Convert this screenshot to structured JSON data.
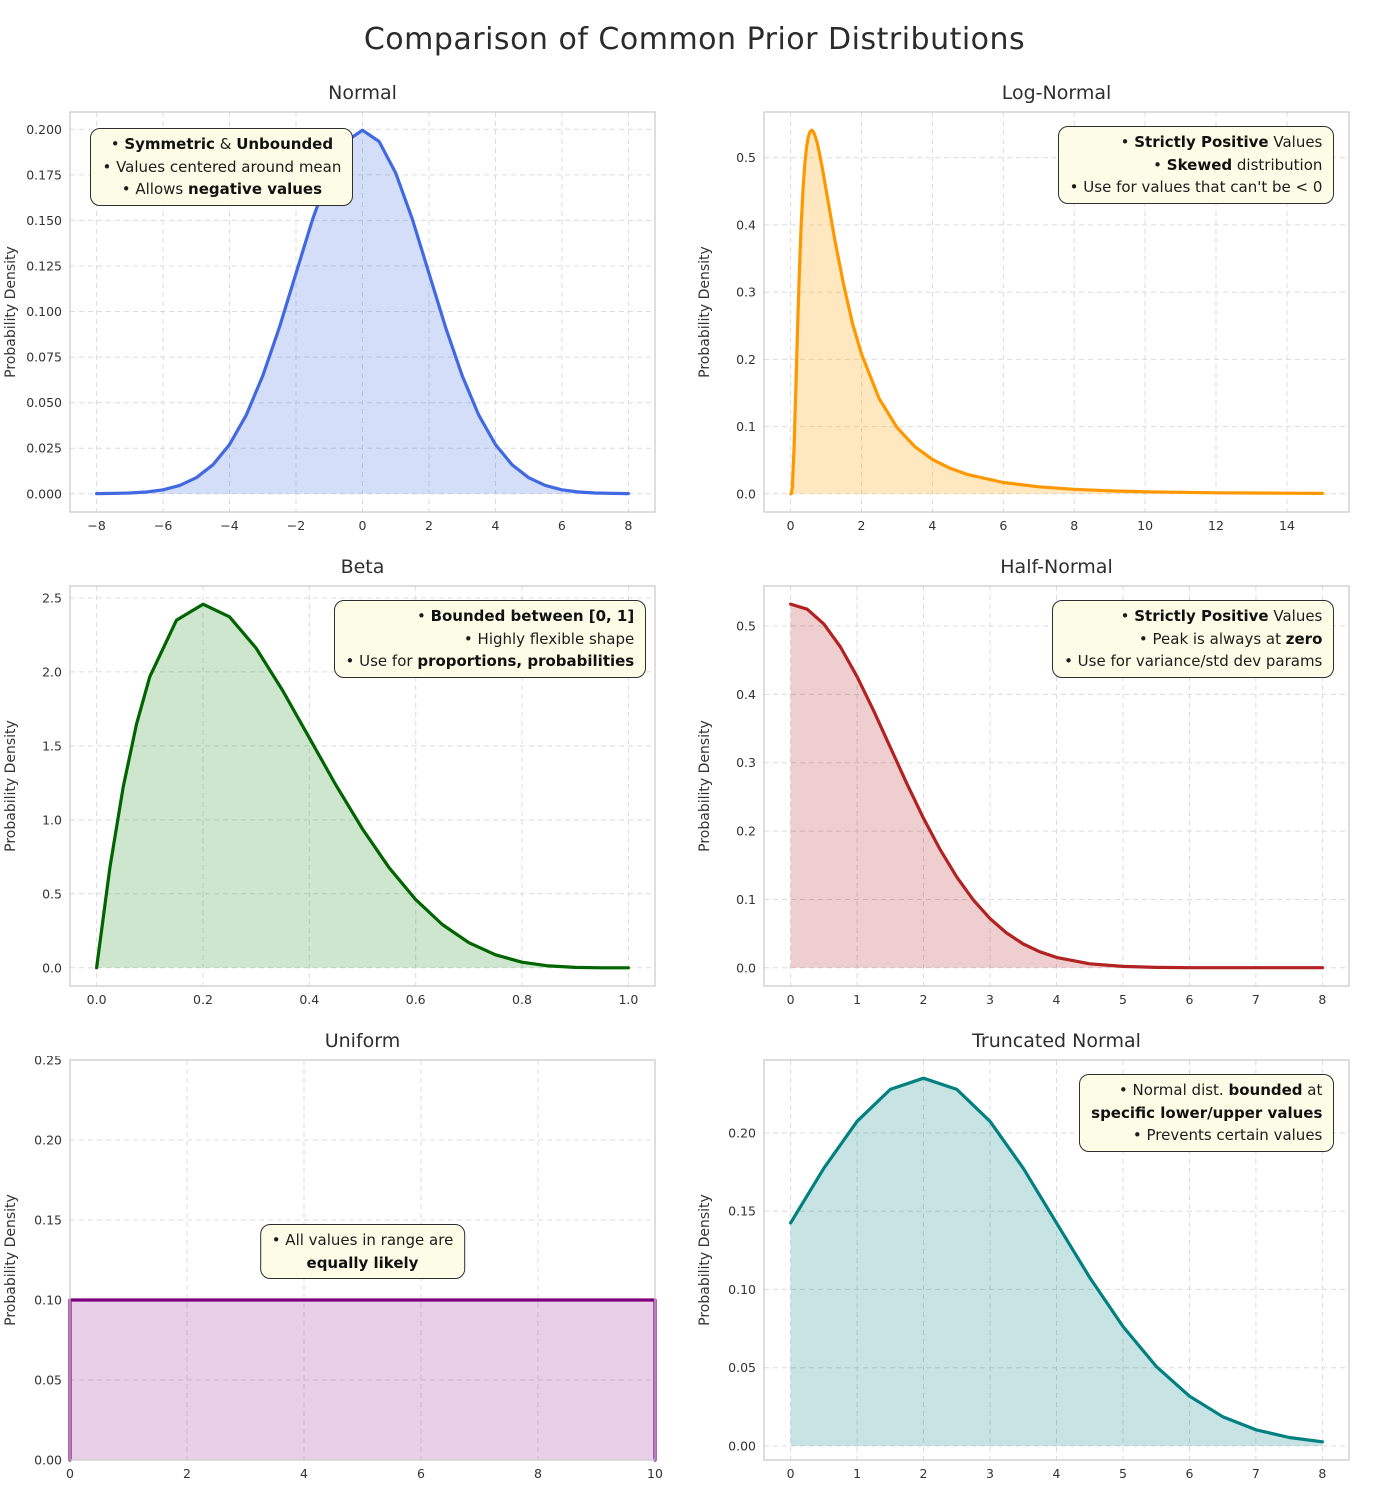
{
  "figure": {
    "title": "Comparison of Common Prior Distributions",
    "background": "#ffffff",
    "annotation_bg": "#fdfce6",
    "annotation_border": "#2f2f2f",
    "grid_color": "#dcdcdc",
    "spine_color": "#cccccc"
  },
  "chart_data": [
    {
      "type": "area",
      "title": "Normal",
      "ylabel": "Probability Density",
      "color": "#4169E1",
      "fill": "rgba(65,105,225,0.22)",
      "xlim": [
        -8.8,
        8.8
      ],
      "ylim": [
        -0.01,
        0.2095
      ],
      "xticks": [
        -8,
        -6,
        -4,
        -2,
        0,
        2,
        4,
        6,
        8
      ],
      "xtick_labels": [
        "−8",
        "−6",
        "−4",
        "−2",
        "0",
        "2",
        "4",
        "6",
        "8"
      ],
      "yticks": [
        0,
        0.025,
        0.05,
        0.075,
        0.1,
        0.125,
        0.15,
        0.175,
        0.2
      ],
      "ytick_labels": [
        "0.000",
        "0.025",
        "0.050",
        "0.075",
        "0.100",
        "0.125",
        "0.150",
        "0.175",
        "0.200"
      ],
      "x": [
        -8,
        -7.5,
        -7,
        -6.5,
        -6,
        -5.5,
        -5,
        -4.5,
        -4,
        -3.5,
        -3,
        -2.5,
        -2,
        -1.5,
        -1,
        -0.5,
        0,
        0.5,
        1,
        1.5,
        2,
        2.5,
        3,
        3.5,
        4,
        4.5,
        5,
        5.5,
        6,
        6.5,
        7,
        7.5,
        8
      ],
      "y": [
        0.0001,
        0.0002,
        0.0004,
        0.001,
        0.0022,
        0.0046,
        0.0088,
        0.0159,
        0.027,
        0.0431,
        0.0648,
        0.0913,
        0.121,
        0.1506,
        0.176,
        0.1933,
        0.1995,
        0.1933,
        0.176,
        0.1506,
        0.121,
        0.0913,
        0.0648,
        0.0431,
        0.027,
        0.0159,
        0.0088,
        0.0046,
        0.0022,
        0.001,
        0.0004,
        0.0002,
        0.0001
      ],
      "grid": true,
      "annotation": {
        "align": "center",
        "anchor": "left",
        "fx": 0.035,
        "fy": 0.04,
        "lines": [
          [
            {
              "t": "• "
            },
            {
              "t": "Symmetric",
              "b": 1
            },
            {
              "t": " & "
            },
            {
              "t": "Unbounded",
              "b": 1
            }
          ],
          [
            {
              "t": "• Values centered around mean"
            }
          ],
          [
            {
              "t": "• Allows "
            },
            {
              "t": "negative values",
              "b": 1
            }
          ]
        ]
      }
    },
    {
      "type": "area",
      "title": "Log-Normal",
      "ylabel": "Probability Density",
      "color": "#FF9800",
      "fill": "rgba(255,165,0,0.25)",
      "xlim": [
        -0.75,
        15.75
      ],
      "ylim": [
        -0.027,
        0.568
      ],
      "xticks": [
        0,
        2,
        4,
        6,
        8,
        10,
        12,
        14
      ],
      "xtick_labels": [
        "0",
        "2",
        "4",
        "6",
        "8",
        "10",
        "12",
        "14"
      ],
      "yticks": [
        0,
        0.1,
        0.2,
        0.3,
        0.4,
        0.5
      ],
      "ytick_labels": [
        "0.0",
        "0.1",
        "0.2",
        "0.3",
        "0.4",
        "0.5"
      ],
      "x": [
        0.01,
        0.02,
        0.05,
        0.1,
        0.15,
        0.2,
        0.25,
        0.3,
        0.35,
        0.4,
        0.45,
        0.5,
        0.55,
        0.6,
        0.65,
        0.7,
        0.75,
        0.8,
        0.9,
        1,
        1.25,
        1.5,
        1.75,
        2,
        2.5,
        3,
        3.5,
        4,
        4.5,
        5,
        6,
        7,
        8,
        9,
        10,
        11,
        12,
        13,
        14,
        15
      ],
      "y": [
        0,
        0.0003,
        0.0102,
        0.0702,
        0.16,
        0.253,
        0.335,
        0.401,
        0.4525,
        0.49,
        0.515,
        0.531,
        0.539,
        0.541,
        0.538,
        0.531,
        0.522,
        0.51,
        0.483,
        0.453,
        0.377,
        0.31,
        0.253,
        0.208,
        0.1416,
        0.0987,
        0.0704,
        0.0512,
        0.038,
        0.0286,
        0.0169,
        0.0105,
        0.0068,
        0.0045,
        0.0031,
        0.0023,
        0.0016,
        0.0012,
        0.0009,
        0.0007
      ],
      "grid": true,
      "annotation": {
        "align": "right",
        "anchor": "right",
        "fx": 0.975,
        "fy": 0.035,
        "lines": [
          [
            {
              "t": "• "
            },
            {
              "t": "Strictly Positive",
              "b": 1
            },
            {
              "t": " Values"
            }
          ],
          [
            {
              "t": "• "
            },
            {
              "t": "Skewed",
              "b": 1
            },
            {
              "t": " distribution"
            }
          ],
          [
            {
              "t": "• Use for values that can't be < 0"
            }
          ]
        ]
      }
    },
    {
      "type": "area",
      "title": "Beta",
      "ylabel": "Probability Density",
      "color": "#006400",
      "fill": "rgba(34,139,34,0.22)",
      "xlim": [
        -0.05,
        1.05
      ],
      "ylim": [
        -0.123,
        2.581
      ],
      "xticks": [
        0,
        0.2,
        0.4,
        0.6,
        0.8,
        1.0
      ],
      "xtick_labels": [
        "0.0",
        "0.2",
        "0.4",
        "0.6",
        "0.8",
        "1.0"
      ],
      "yticks": [
        0,
        0.5,
        1,
        1.5,
        2,
        2.5
      ],
      "ytick_labels": [
        "0.0",
        "0.5",
        "1.0",
        "1.5",
        "2.0",
        "2.5"
      ],
      "x": [
        0,
        0.025,
        0.05,
        0.075,
        0.1,
        0.15,
        0.2,
        0.25,
        0.3,
        0.35,
        0.4,
        0.45,
        0.5,
        0.55,
        0.6,
        0.65,
        0.7,
        0.75,
        0.8,
        0.85,
        0.9,
        0.95,
        1
      ],
      "y": [
        0,
        0.678,
        1.222,
        1.647,
        1.968,
        2.349,
        2.458,
        2.373,
        2.161,
        1.874,
        1.555,
        1.235,
        0.938,
        0.677,
        0.461,
        0.293,
        0.17,
        0.088,
        0.038,
        0.013,
        0.003,
        0.0002,
        0
      ],
      "grid": true,
      "annotation": {
        "align": "right",
        "anchor": "right",
        "fx": 0.985,
        "fy": 0.035,
        "lines": [
          [
            {
              "t": "• "
            },
            {
              "t": "Bounded between [0, 1]",
              "b": 1
            }
          ],
          [
            {
              "t": "• Highly flexible shape"
            }
          ],
          [
            {
              "t": "• Use for "
            },
            {
              "t": "proportions, probabilities",
              "b": 1
            }
          ]
        ]
      }
    },
    {
      "type": "area",
      "title": "Half-Normal",
      "ylabel": "Probability Density",
      "color": "#B22222",
      "fill": "rgba(178,34,34,0.22)",
      "xlim": [
        -0.4,
        8.4
      ],
      "ylim": [
        -0.0266,
        0.5585
      ],
      "xticks": [
        0,
        1,
        2,
        3,
        4,
        5,
        6,
        7,
        8
      ],
      "xtick_labels": [
        "0",
        "1",
        "2",
        "3",
        "4",
        "5",
        "6",
        "7",
        "8"
      ],
      "yticks": [
        0,
        0.1,
        0.2,
        0.3,
        0.4,
        0.5
      ],
      "ytick_labels": [
        "0.0",
        "0.1",
        "0.2",
        "0.3",
        "0.4",
        "0.5"
      ],
      "x": [
        0,
        0.25,
        0.5,
        0.75,
        1,
        1.25,
        1.5,
        1.75,
        2,
        2.25,
        2.5,
        2.75,
        3,
        3.25,
        3.5,
        3.75,
        4,
        4.5,
        5,
        5.5,
        6,
        6.5,
        7,
        7.5,
        8
      ],
      "y": [
        0.532,
        0.5246,
        0.5031,
        0.4694,
        0.4259,
        0.3759,
        0.3226,
        0.2693,
        0.2187,
        0.1727,
        0.1327,
        0.0991,
        0.072,
        0.0509,
        0.0349,
        0.0234,
        0.0152,
        0.0059,
        0.0021,
        0.0006,
        0.0002,
        0.0001,
        0.0001,
        0.0001,
        0.0001
      ],
      "grid": true,
      "annotation": {
        "align": "right",
        "anchor": "right",
        "fx": 0.975,
        "fy": 0.035,
        "lines": [
          [
            {
              "t": "• "
            },
            {
              "t": "Strictly Positive",
              "b": 1
            },
            {
              "t": " Values"
            }
          ],
          [
            {
              "t": "• Peak is always at "
            },
            {
              "t": "zero",
              "b": 1
            }
          ],
          [
            {
              "t": "• Use for variance/std dev params"
            }
          ]
        ]
      }
    },
    {
      "type": "area",
      "title": "Uniform",
      "ylabel": "Probability Density",
      "color": "#800080",
      "fill": "rgba(128,0,128,0.18)",
      "xlim": [
        0,
        10
      ],
      "ylim": [
        0,
        0.25
      ],
      "xticks": [
        0,
        2,
        4,
        6,
        8,
        10
      ],
      "xtick_labels": [
        "0",
        "2",
        "4",
        "6",
        "8",
        "10"
      ],
      "yticks": [
        0,
        0.05,
        0.1,
        0.15,
        0.2,
        0.25
      ],
      "ytick_labels": [
        "0.00",
        "0.05",
        "0.10",
        "0.15",
        "0.20",
        "0.25"
      ],
      "x": [
        0,
        0,
        10,
        10
      ],
      "y": [
        0,
        0.1,
        0.1,
        0
      ],
      "grid": true,
      "annotation": {
        "align": "center",
        "anchor": "center",
        "fx": 0.5,
        "fy": 0.41,
        "lines": [
          [
            {
              "t": "• All values in range are"
            }
          ],
          [
            {
              "t": "equally likely",
              "b": 1
            }
          ]
        ]
      }
    },
    {
      "type": "area",
      "title": "Truncated Normal",
      "ylabel": "Probability Density",
      "color": "#008080",
      "fill": "rgba(0,128,128,0.22)",
      "xlim": [
        -0.4,
        8.4
      ],
      "ylim": [
        -0.009,
        0.2466
      ],
      "xticks": [
        0,
        1,
        2,
        3,
        4,
        5,
        6,
        7,
        8
      ],
      "xtick_labels": [
        "0",
        "1",
        "2",
        "3",
        "4",
        "5",
        "6",
        "7",
        "8"
      ],
      "yticks": [
        0,
        0.05,
        0.1,
        0.15,
        0.2
      ],
      "ytick_labels": [
        "0.00",
        "0.05",
        "0.10",
        "0.15",
        "0.20"
      ],
      "x": [
        0,
        0.5,
        1,
        1.5,
        2,
        2.5,
        3,
        3.5,
        4,
        4.5,
        5,
        5.5,
        6,
        6.5,
        7,
        7.5,
        8
      ],
      "y": [
        0.1425,
        0.1774,
        0.2074,
        0.2278,
        0.235,
        0.2278,
        0.2074,
        0.1774,
        0.1425,
        0.1076,
        0.0763,
        0.0508,
        0.0318,
        0.0187,
        0.0103,
        0.0054,
        0.0026
      ],
      "grid": true,
      "annotation": {
        "align": "right",
        "anchor": "right",
        "fx": 0.975,
        "fy": 0.035,
        "lines": [
          [
            {
              "t": "• Normal dist. "
            },
            {
              "t": "bounded",
              "b": 1
            },
            {
              "t": " at"
            }
          ],
          [
            {
              "t": "specific lower/upper values",
              "b": 1
            }
          ],
          [
            {
              "t": "• Prevents certain values"
            }
          ]
        ]
      }
    }
  ]
}
